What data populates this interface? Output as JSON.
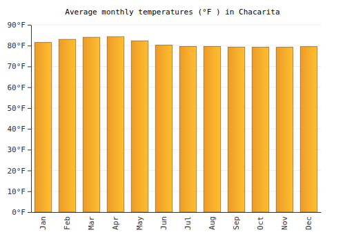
{
  "chart_data": {
    "type": "bar",
    "title": "Average monthly temperatures (°F ) in Chacarita",
    "categories": [
      "Jan",
      "Feb",
      "Mar",
      "Apr",
      "May",
      "Jun",
      "Jul",
      "Aug",
      "Sep",
      "Oct",
      "Nov",
      "Dec"
    ],
    "values": [
      81.5,
      83,
      84,
      84.3,
      82.3,
      80.2,
      79.6,
      79.6,
      79.3,
      79.2,
      79.2,
      79.5
    ],
    "color": "#f9a329",
    "ylim": [
      0,
      90
    ],
    "yticks": [
      {
        "value": 0,
        "label": "0°F"
      },
      {
        "value": 10,
        "label": "10°F"
      },
      {
        "value": 20,
        "label": "20°F"
      },
      {
        "value": 30,
        "label": "30°F"
      },
      {
        "value": 40,
        "label": "40°F"
      },
      {
        "value": 50,
        "label": "50°F"
      },
      {
        "value": 60,
        "label": "60°F"
      },
      {
        "value": 70,
        "label": "70°F"
      },
      {
        "value": 80,
        "label": "80°F"
      },
      {
        "value": 90,
        "label": "90°F"
      }
    ],
    "grid": true
  }
}
